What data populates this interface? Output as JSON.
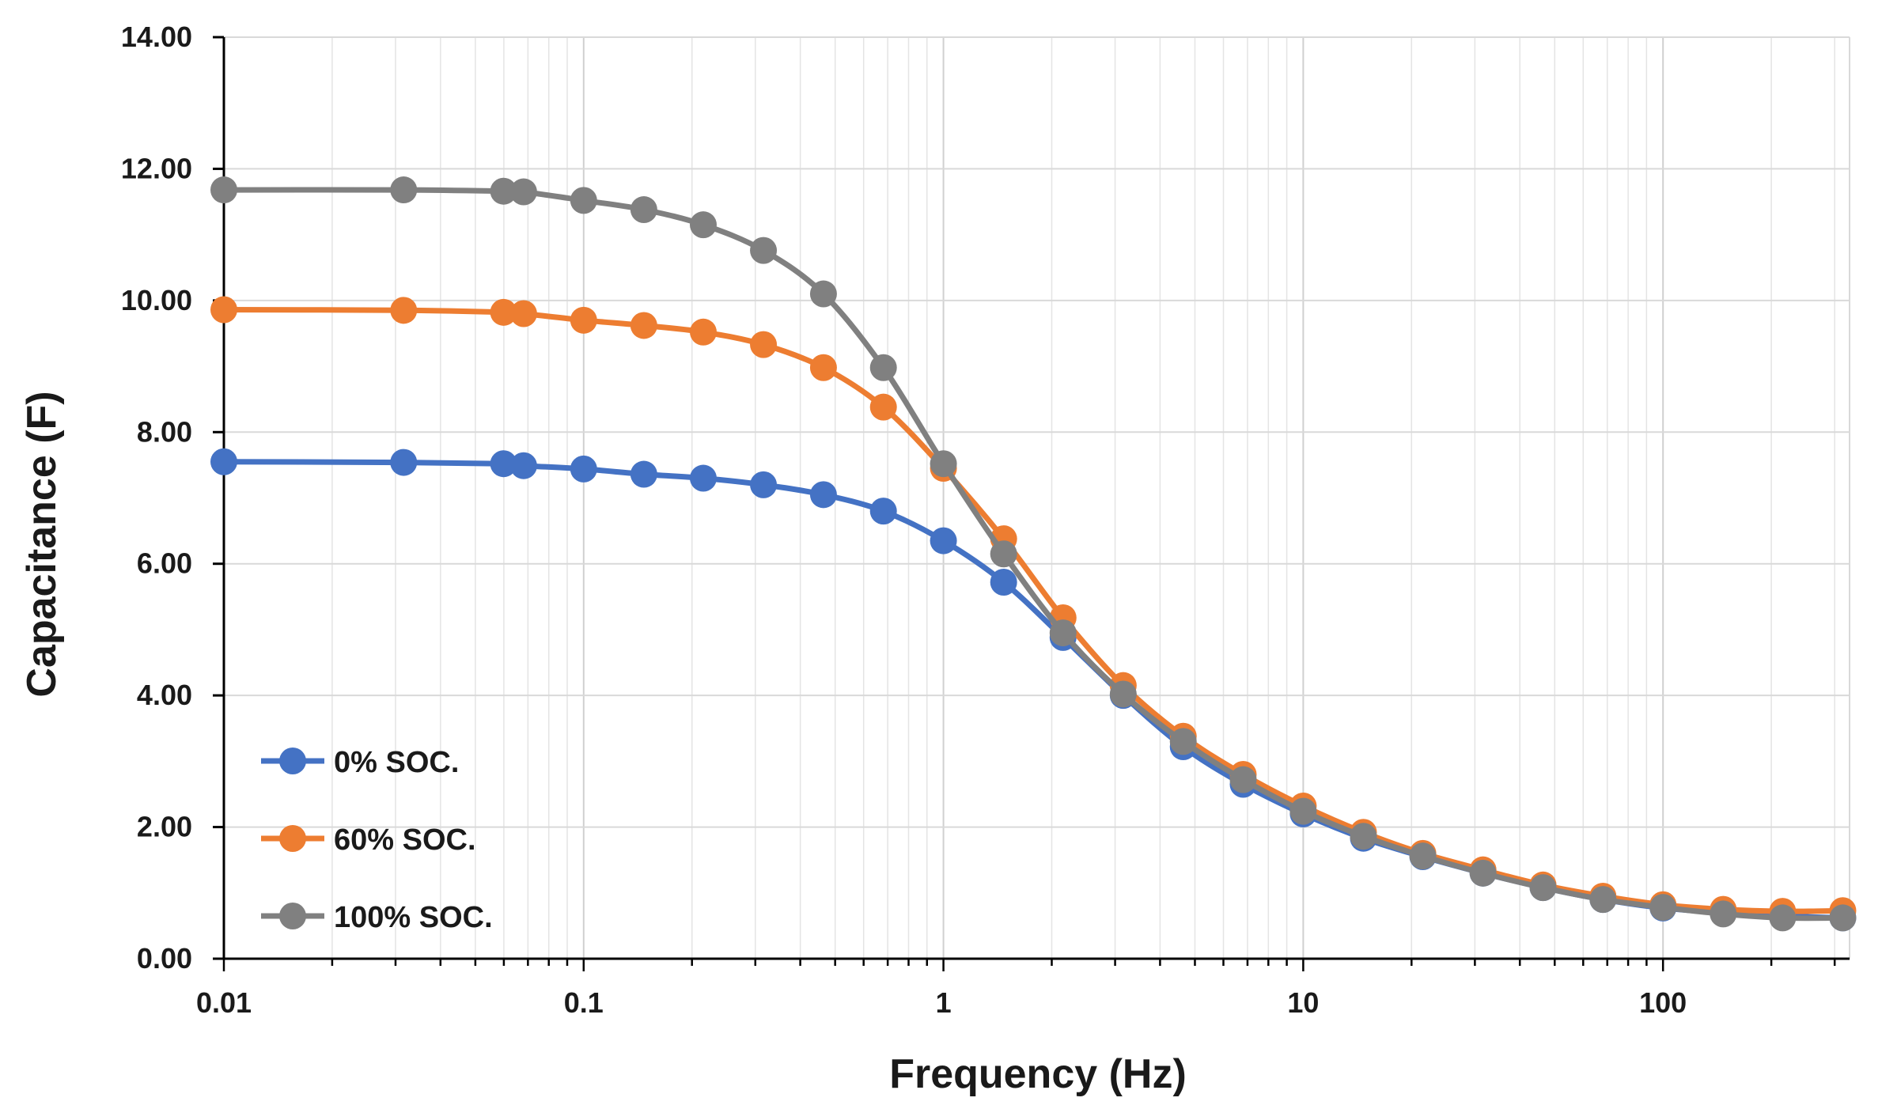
{
  "chart_data": {
    "type": "line",
    "title": "",
    "xlabel": "Frequency (Hz)",
    "ylabel": "Capacitance (F)",
    "x_scale": "log",
    "xlim": [
      0.01,
      330
    ],
    "ylim": [
      0,
      14
    ],
    "x_ticks": [
      {
        "value": 0.01,
        "label": "0.01"
      },
      {
        "value": 0.1,
        "label": "0.1"
      },
      {
        "value": 1,
        "label": "1"
      },
      {
        "value": 10,
        "label": "10"
      },
      {
        "value": 100,
        "label": "100"
      }
    ],
    "y_ticks": [
      {
        "value": 0,
        "label": "0.00"
      },
      {
        "value": 2,
        "label": "2.00"
      },
      {
        "value": 4,
        "label": "4.00"
      },
      {
        "value": 6,
        "label": "6.00"
      },
      {
        "value": 8,
        "label": "8.00"
      },
      {
        "value": 10,
        "label": "10.00"
      },
      {
        "value": 12,
        "label": "12.00"
      },
      {
        "value": 14,
        "label": "14.00"
      }
    ],
    "grid": true,
    "legend_position": "bottom-left",
    "x": [
      0.01,
      0.0316,
      0.0599,
      0.0681,
      0.1,
      0.147,
      0.215,
      0.316,
      0.464,
      0.681,
      1.0,
      1.47,
      2.15,
      3.16,
      4.64,
      6.81,
      10.0,
      14.7,
      21.5,
      31.6,
      46.4,
      68.1,
      100,
      147,
      215,
      316
    ],
    "series": [
      {
        "name": "0% SOC.",
        "color": "#4472C4",
        "values": [
          7.55,
          7.54,
          7.52,
          7.49,
          7.44,
          7.36,
          7.3,
          7.2,
          7.05,
          6.8,
          6.35,
          5.72,
          4.88,
          4.0,
          3.22,
          2.65,
          2.2,
          1.83,
          1.55,
          1.3,
          1.08,
          0.9,
          0.77,
          0.7,
          0.65,
          0.62
        ]
      },
      {
        "name": "60% SOC.",
        "color": "#ED7D31",
        "values": [
          9.86,
          9.85,
          9.82,
          9.8,
          9.7,
          9.62,
          9.52,
          9.33,
          8.98,
          8.38,
          7.45,
          6.38,
          5.18,
          4.15,
          3.38,
          2.8,
          2.32,
          1.92,
          1.6,
          1.35,
          1.12,
          0.95,
          0.82,
          0.75,
          0.72,
          0.73
        ]
      },
      {
        "name": "100% SOC.",
        "color": "#808080",
        "values": [
          11.68,
          11.68,
          11.66,
          11.65,
          11.52,
          11.38,
          11.15,
          10.76,
          10.1,
          8.98,
          7.52,
          6.15,
          4.95,
          4.02,
          3.3,
          2.72,
          2.24,
          1.86,
          1.56,
          1.3,
          1.08,
          0.9,
          0.78,
          0.68,
          0.62,
          0.62
        ]
      }
    ]
  }
}
